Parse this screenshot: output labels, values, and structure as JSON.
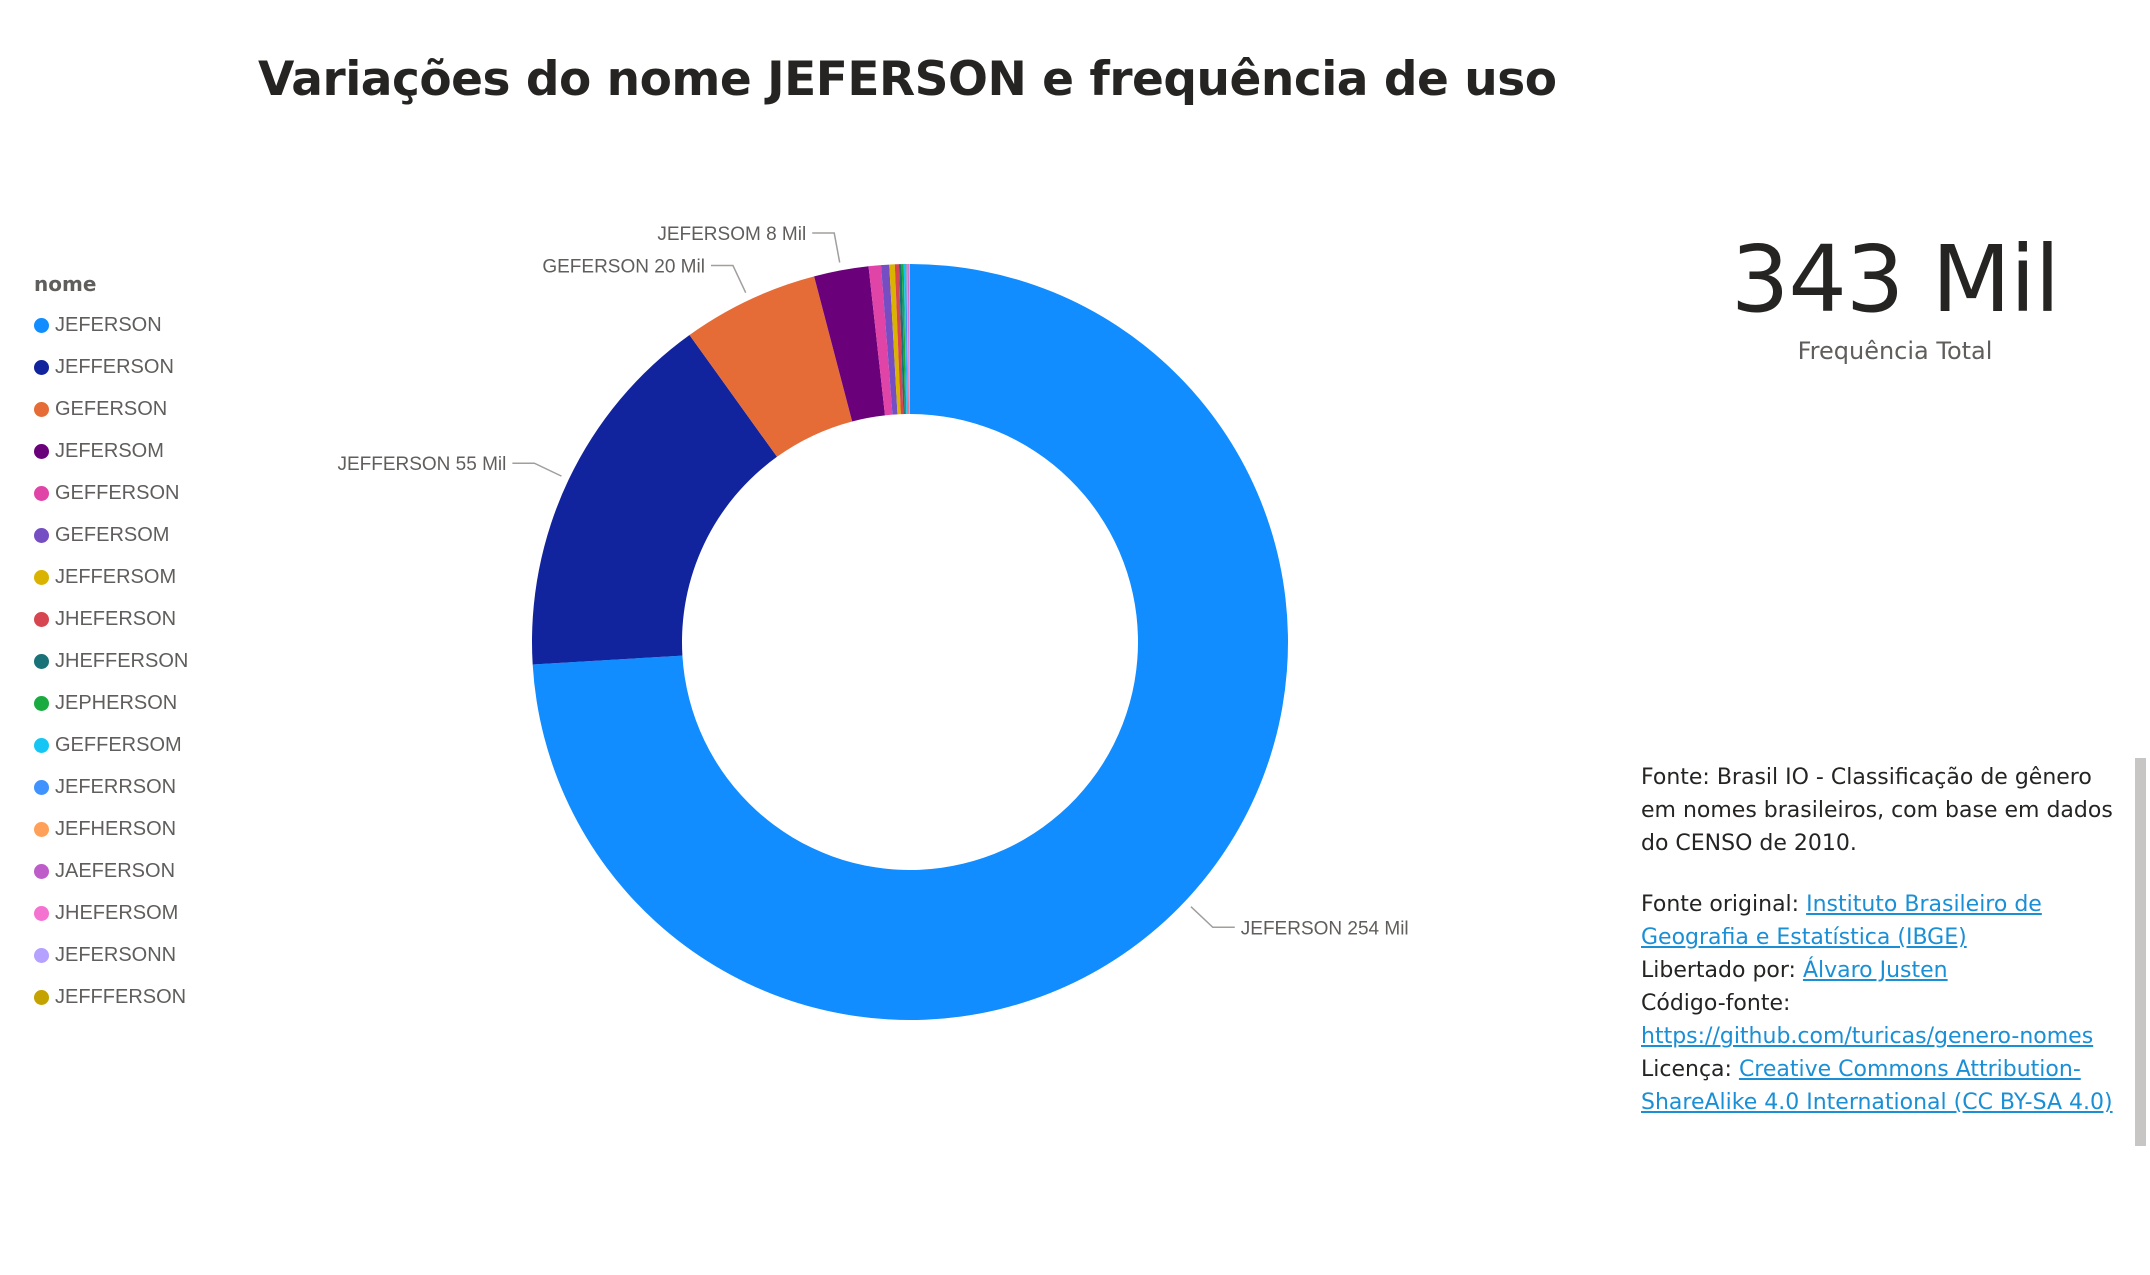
{
  "title": "Variações do nome JEFERSON e frequência de uso",
  "legend": {
    "title": "nome",
    "items": [
      {
        "label": "JEFERSON",
        "color": "#118dff"
      },
      {
        "label": "JEFFERSON",
        "color": "#12239e"
      },
      {
        "label": "GEFERSON",
        "color": "#e66c37"
      },
      {
        "label": "JEFERSOM",
        "color": "#6b007b"
      },
      {
        "label": "GEFFERSON",
        "color": "#e044a7"
      },
      {
        "label": "GEFERSOM",
        "color": "#744ec2"
      },
      {
        "label": "JEFFERSOM",
        "color": "#d9b300"
      },
      {
        "label": "JHEFERSON",
        "color": "#d64550"
      },
      {
        "label": "JHEFFERSON",
        "color": "#197278"
      },
      {
        "label": "JEPHERSON",
        "color": "#1aab40"
      },
      {
        "label": "GEFFERSOM",
        "color": "#15c6f4"
      },
      {
        "label": "JEFERRSON",
        "color": "#4092ff"
      },
      {
        "label": "JEFHERSON",
        "color": "#ffa058"
      },
      {
        "label": "JAEFERSON",
        "color": "#be5dc9"
      },
      {
        "label": "JHEFERSOM",
        "color": "#f472d0"
      },
      {
        "label": "JEFERSONN",
        "color": "#b5a1ff"
      },
      {
        "label": "JEFFFERSON",
        "color": "#c4a200"
      }
    ]
  },
  "chart_data": {
    "type": "pie",
    "subtype": "donut",
    "categories": [
      "JEFERSON",
      "JEFFERSON",
      "GEFERSON",
      "JEFERSOM",
      "GEFFERSON",
      "GEFERSOM",
      "JEFFERSOM",
      "JHEFERSON",
      "JHEFFERSON",
      "JEPHERSON",
      "GEFFERSOM",
      "JEFERRSON",
      "JEFHERSON",
      "JAEFERSON",
      "JHEFERSOM",
      "JEFERSONN",
      "JEFFFERSON"
    ],
    "values": [
      254,
      55,
      20,
      8,
      1.8,
      1.2,
      0.8,
      0.6,
      0.4,
      0.3,
      0.2,
      0.2,
      0.15,
      0.12,
      0.1,
      0.08,
      0.05
    ],
    "unit": "Mil",
    "data_labels": [
      {
        "category": "JEFERSON",
        "text": "JEFERSON 254 Mil"
      },
      {
        "category": "JEFFERSON",
        "text": "JEFFERSON 55 Mil"
      },
      {
        "category": "GEFERSON",
        "text": "GEFERSON 20 Mil"
      },
      {
        "category": "JEFERSOM",
        "text": "JEFERSOM 8 Mil"
      }
    ],
    "legend_title": "nome",
    "legend_position": "left"
  },
  "card": {
    "value": "343 Mil",
    "label": "Frequência Total"
  },
  "source": {
    "line1": "Fonte: Brasil IO - Classificação de gênero em nomes brasileiros, com base em dados do CENSO de 2010.",
    "original_prefix": "Fonte original: ",
    "original_link": "Instituto Brasileiro de Geografia e Estatística (IBGE)",
    "freed_prefix": "Libertado por: ",
    "freed_link": "Álvaro Justen",
    "code_prefix": "Código-fonte: ",
    "code_link": "https://github.com/turicas/genero-nomes",
    "license_prefix": "Licença: ",
    "license_link": "Creative Commons Attribution-ShareAlike 4.0 International (CC BY-SA 4.0)"
  }
}
